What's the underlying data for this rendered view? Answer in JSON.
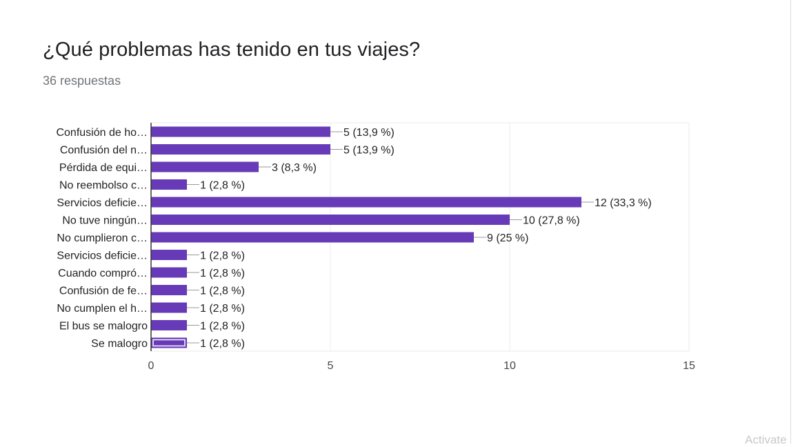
{
  "question": {
    "title": "¿Qué problemas has tenido en tus viajes?",
    "responses": "36 respuestas"
  },
  "watermark": "Activate",
  "colors": {
    "bar": "#673ab7",
    "grid": "#ebebeb",
    "axis": "#333333",
    "text": "#222222"
  },
  "chart_data": {
    "type": "bar",
    "orientation": "horizontal",
    "categories": [
      "Confusión de ho…",
      "Confusión del n…",
      "Pérdida de equi…",
      "No reembolso c…",
      "Servicios deficie…",
      "No tuve ningún…",
      "No cumplieron c…",
      "Servicios deficie…",
      "Cuando compró…",
      "Confusión de fe…",
      "No cumplen el h…",
      "El bus se malogro",
      "Se malogro"
    ],
    "values": [
      5,
      5,
      3,
      1,
      12,
      10,
      9,
      1,
      1,
      1,
      1,
      1,
      1
    ],
    "data_labels": [
      "5 (13,9 %)",
      "5 (13,9 %)",
      "3 (8,3 %)",
      "1 (2,8 %)",
      "12 (33,3 %)",
      "10 (27,8 %)",
      "9 (25 %)",
      "1 (2,8 %)",
      "1 (2,8 %)",
      "1 (2,8 %)",
      "1 (2,8 %)",
      "1 (2,8 %)",
      "1 (2,8 %)"
    ],
    "xlim": [
      0,
      15
    ],
    "xticks": [
      0,
      5,
      10,
      15
    ],
    "xtick_labels": [
      "0",
      "5",
      "10",
      "15"
    ],
    "highlighted_index": 12,
    "grid": true,
    "legend": "none"
  }
}
